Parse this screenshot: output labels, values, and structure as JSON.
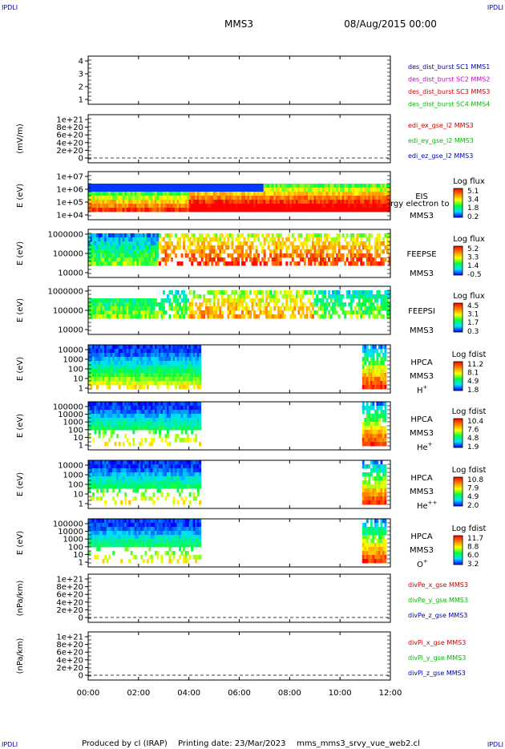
{
  "header": {
    "corner_left_top": "IPDLI",
    "corner_right_top": "IPDLI",
    "spacecraft": "MMS3",
    "datetime": "08/Aug/2015 00:00"
  },
  "footer": {
    "corner_left_bottom": "IPDLI",
    "corner_right_bottom": "IPDLI",
    "produced_by": "Produced by cl (IRAP)",
    "printing_date": "Printing date: 23/Mar/2023",
    "filename": "mms_mms3_srvy_vue_web2.cl"
  },
  "colors": {
    "mms1": "#0000aa",
    "mms2": "#cc00cc",
    "mms3": "#cc0000",
    "mms4": "#00bb00",
    "x_comp": "#cc0000",
    "y_comp": "#00bb00",
    "z_comp": "#0000aa"
  },
  "chart_data": [
    {
      "id": "panel-1",
      "type": "line",
      "ylabel": "",
      "yticks": [
        "1",
        "2",
        "3",
        "4"
      ],
      "ylim": [
        0.7,
        4.3
      ],
      "legend": [
        {
          "text": "des_dist_burst SC1 MMS1",
          "color": "#0000aa"
        },
        {
          "text": "des_dist_burst SC2 MMS2",
          "color": "#cc00cc"
        },
        {
          "text": "des_dist_burst SC3 MMS3",
          "color": "#cc0000"
        },
        {
          "text": "des_dist_burst SC4 MMS4",
          "color": "#00bb00"
        }
      ],
      "series": []
    },
    {
      "id": "panel-2",
      "type": "line",
      "ylabel": "(mV/m)",
      "yticks": [
        "0",
        "2e+20",
        "4e+20",
        "6e+20",
        "8e+20",
        "1e+21"
      ],
      "ylim": [
        -0.1,
        1.05
      ],
      "zero_line": true,
      "legend": [
        {
          "text": "edi_ex_gse_l2 MMS3",
          "color": "#cc0000"
        },
        {
          "text": "edi_ey_gse_l2 MMS3",
          "color": "#00bb00"
        },
        {
          "text": "edi_ez_gse_l2 MMS3",
          "color": "#0000aa"
        }
      ],
      "series": []
    },
    {
      "id": "panel-3",
      "type": "heatmap",
      "ylabel": "E (eV)",
      "yticks": [
        "1e+04",
        "1e+05",
        "1e+06",
        "1e+07"
      ],
      "labels": [
        "EIS",
        "MMS3"
      ],
      "overlay_text": "rgy electron to",
      "colorbar": {
        "title": "Log flux",
        "ticks": [
          "5.1",
          "3.4",
          "1.8",
          "0.2"
        ]
      },
      "coverage_hours": [
        [
          0,
          12
        ]
      ]
    },
    {
      "id": "panel-4",
      "type": "heatmap",
      "ylabel": "E (eV)",
      "yticks": [
        "10000",
        "100000",
        "1000000"
      ],
      "labels": [
        "FEEPSE",
        "MMS3"
      ],
      "colorbar": {
        "title": "Log flux",
        "ticks": [
          "5.2",
          "3.3",
          "1.4",
          "-0.5"
        ]
      },
      "coverage_hours": [
        [
          0,
          12
        ]
      ]
    },
    {
      "id": "panel-5",
      "type": "heatmap",
      "ylabel": "E (eV)",
      "yticks": [
        "10000",
        "100000",
        "1000000"
      ],
      "labels": [
        "FEEPSI",
        "MMS3"
      ],
      "colorbar": {
        "title": "Log flux",
        "ticks": [
          "4.5",
          "3.1",
          "1.7",
          "0.3"
        ]
      },
      "coverage_hours": [
        [
          0,
          12
        ]
      ]
    },
    {
      "id": "panel-6",
      "type": "heatmap",
      "ylabel": "E (eV)",
      "yticks": [
        "1",
        "10",
        "100",
        "1000",
        "10000"
      ],
      "labels": [
        "HPCA",
        "MMS3"
      ],
      "species": "H",
      "species_sup": "+",
      "colorbar": {
        "title": "Log fdist",
        "ticks": [
          "11.2",
          "8.1",
          "4.9",
          "1.8"
        ]
      },
      "coverage_hours": [
        [
          0,
          4.45
        ],
        [
          10.9,
          11.8
        ]
      ]
    },
    {
      "id": "panel-7",
      "type": "heatmap",
      "ylabel": "E (eV)",
      "yticks": [
        "1",
        "10",
        "100",
        "1000",
        "10000",
        "100000"
      ],
      "labels": [
        "HPCA",
        "MMS3"
      ],
      "species": "He",
      "species_sup": "+",
      "colorbar": {
        "title": "Log fdist",
        "ticks": [
          "10.4",
          "7.6",
          "4.8",
          "1.9"
        ]
      },
      "coverage_hours": [
        [
          0,
          4.45
        ],
        [
          10.9,
          11.8
        ]
      ]
    },
    {
      "id": "panel-8",
      "type": "heatmap",
      "ylabel": "E (eV)",
      "yticks": [
        "1",
        "10",
        "100",
        "1000",
        "10000"
      ],
      "labels": [
        "HPCA",
        "MMS3"
      ],
      "species": "He",
      "species_sup": "++",
      "colorbar": {
        "title": "Log fdist",
        "ticks": [
          "10.8",
          "7.9",
          "4.9",
          "2.0"
        ]
      },
      "coverage_hours": [
        [
          0,
          4.45
        ],
        [
          10.9,
          11.8
        ]
      ]
    },
    {
      "id": "panel-9",
      "type": "heatmap",
      "ylabel": "E (eV)",
      "yticks": [
        "1",
        "10",
        "100",
        "1000",
        "10000",
        "100000"
      ],
      "labels": [
        "HPCA",
        "MMS3"
      ],
      "species": "O",
      "species_sup": "+",
      "colorbar": {
        "title": "Log fdist",
        "ticks": [
          "11.7",
          "8.8",
          "6.0",
          "3.2"
        ]
      },
      "coverage_hours": [
        [
          0,
          4.45
        ],
        [
          10.9,
          11.8
        ]
      ]
    },
    {
      "id": "panel-10",
      "type": "line",
      "ylabel": "(nPa/km)",
      "yticks": [
        "0",
        "2e+20",
        "4e+20",
        "6e+20",
        "8e+20",
        "1e+21"
      ],
      "ylim": [
        -0.1,
        1.05
      ],
      "zero_line": true,
      "legend": [
        {
          "text": "divPe_x_gse MMS3",
          "color": "#cc0000"
        },
        {
          "text": "divPe_y_gse MMS3",
          "color": "#00bb00"
        },
        {
          "text": "divPe_z_gse MMS3",
          "color": "#0000aa"
        }
      ],
      "series": []
    },
    {
      "id": "panel-11",
      "type": "line",
      "ylabel": "(nPa/km)",
      "yticks": [
        "0",
        "2e+20",
        "4e+20",
        "6e+20",
        "8e+20",
        "1e+21"
      ],
      "ylim": [
        -0.1,
        1.05
      ],
      "zero_line": true,
      "legend": [
        {
          "text": "divPi_x_gse MMS3",
          "color": "#cc0000"
        },
        {
          "text": "divPi_y_gse MMS3",
          "color": "#00bb00"
        },
        {
          "text": "divPi_z_gse MMS3",
          "color": "#0000aa"
        }
      ],
      "series": []
    }
  ],
  "xaxis": {
    "ticks": [
      "00:00",
      "02:00",
      "04:00",
      "06:00",
      "08:00",
      "10:00",
      "12:00"
    ],
    "range_hours": [
      0,
      12
    ]
  }
}
